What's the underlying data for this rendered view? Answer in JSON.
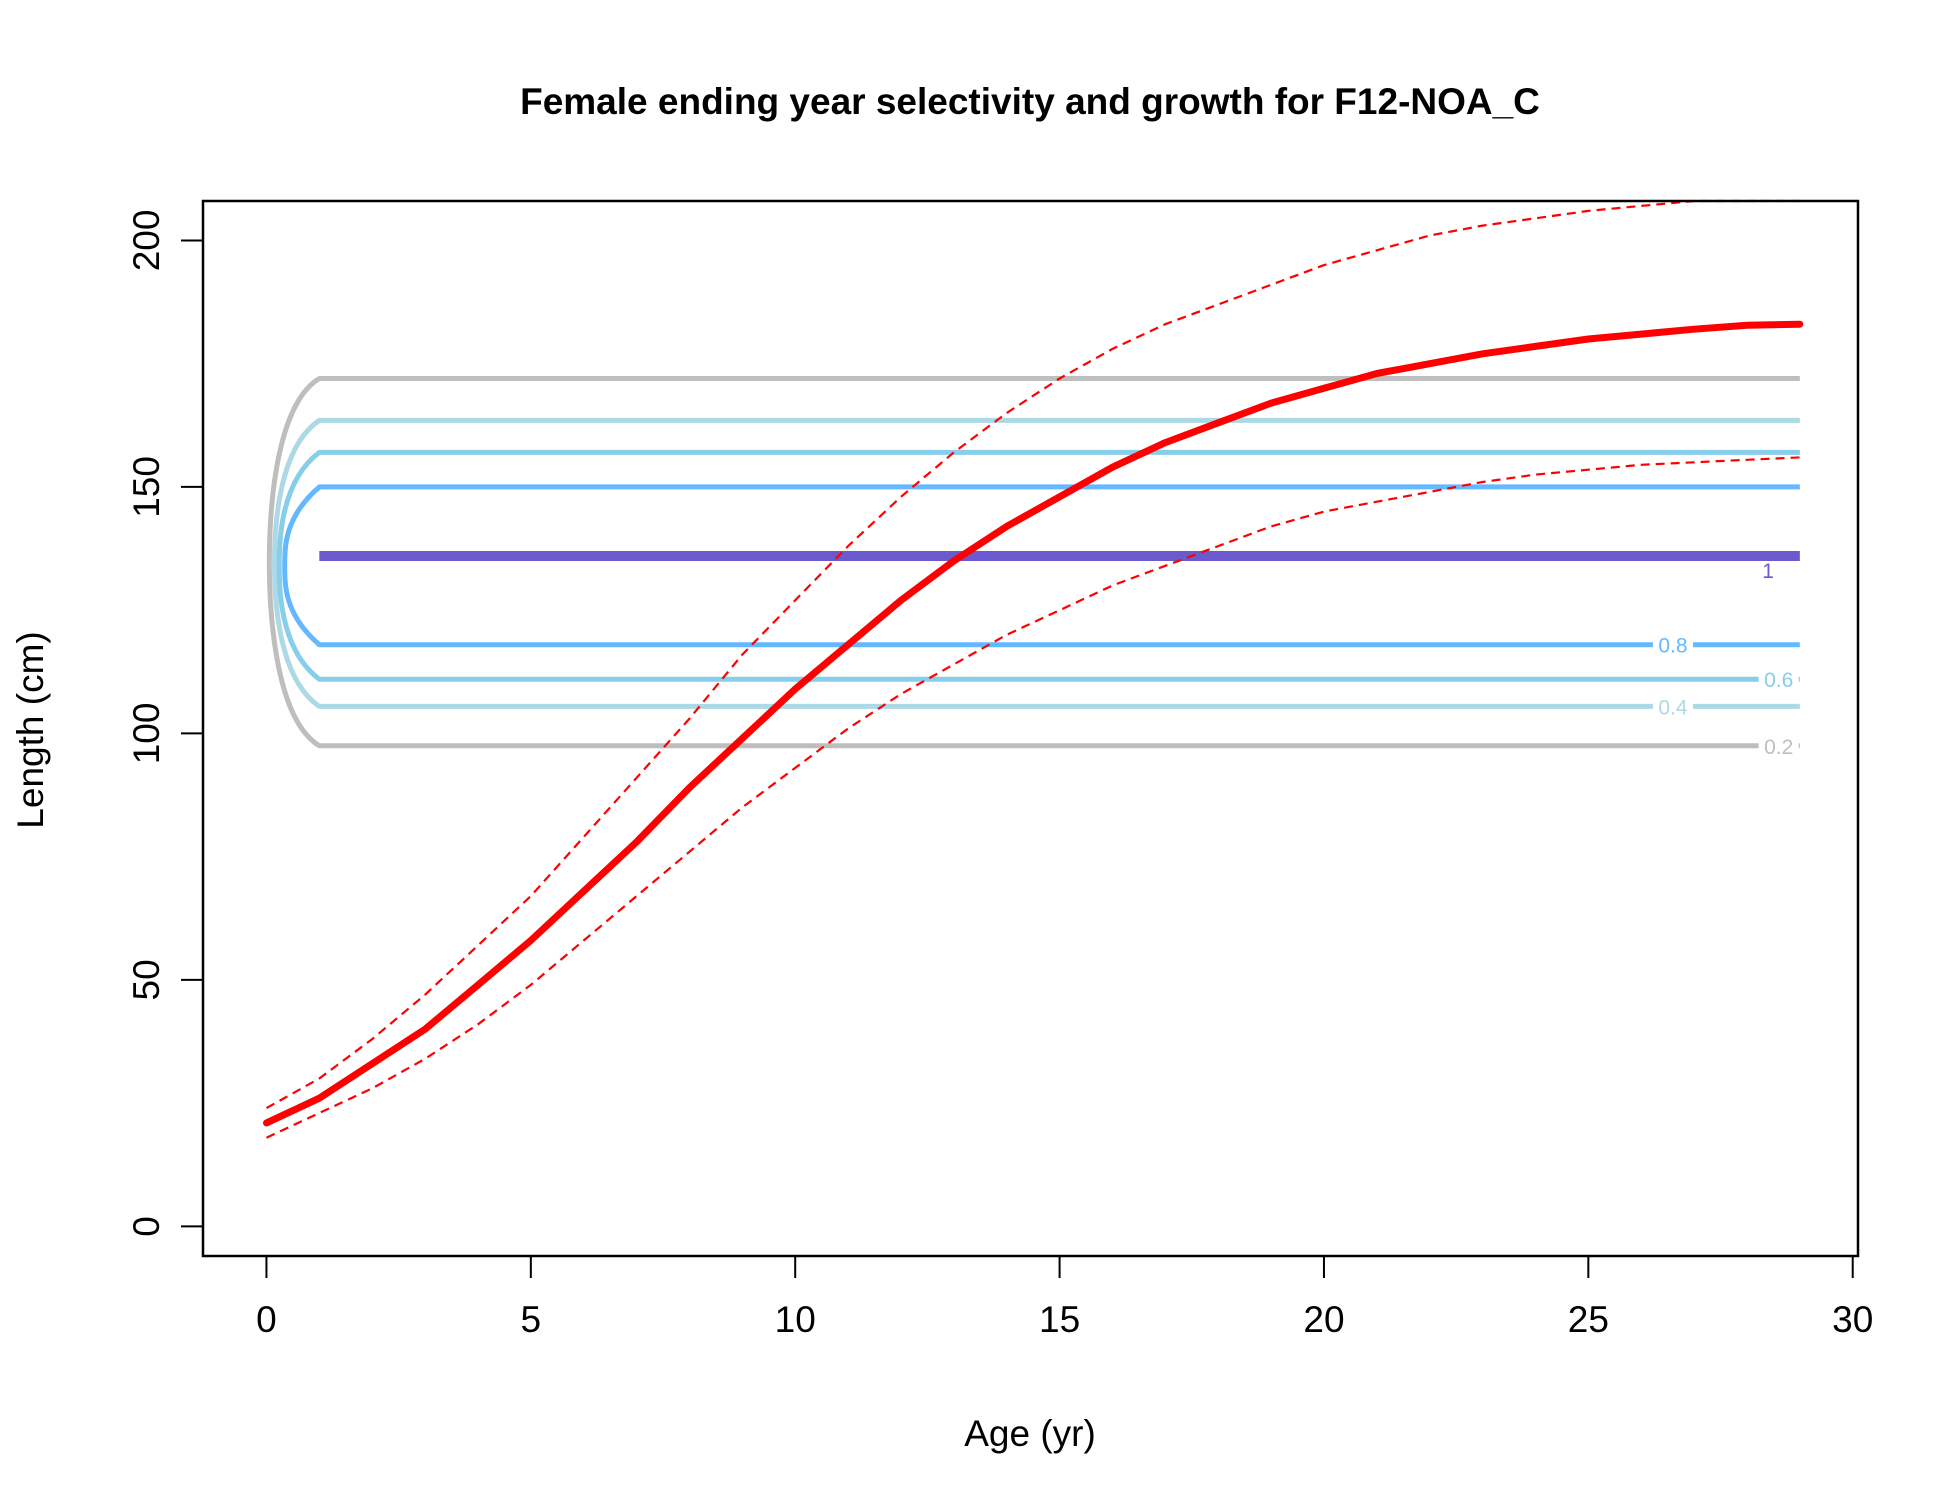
{
  "chart_data": {
    "type": "line",
    "title": "Female ending year selectivity and growth for F12-NOA_C",
    "xlabel": "Age (yr)",
    "ylabel": "Length (cm)",
    "xlim": [
      -1.2,
      30.1
    ],
    "ylim": [
      -6,
      208
    ],
    "x_ticks": [
      0,
      5,
      10,
      15,
      20,
      25,
      30
    ],
    "y_ticks": [
      0,
      50,
      100,
      150,
      200
    ],
    "x_tick_labels": [
      "0",
      "5",
      "10",
      "15",
      "20",
      "25",
      "30"
    ],
    "y_tick_labels": [
      "0",
      "50",
      "100",
      "150",
      "200"
    ],
    "grid": false,
    "legend": "none",
    "growth": {
      "ages": [
        0,
        1,
        2,
        3,
        4,
        5,
        6,
        7,
        8,
        9,
        10,
        11,
        12,
        13,
        14,
        15,
        16,
        17,
        18,
        19,
        20,
        21,
        22,
        23,
        24,
        25,
        26,
        27,
        28,
        29
      ],
      "mean": [
        21,
        26,
        33,
        40,
        49,
        58,
        68,
        78,
        89,
        99,
        109,
        118,
        127,
        135,
        142,
        148,
        154,
        159,
        163,
        167,
        170,
        173,
        175,
        177,
        178.5,
        180,
        181,
        182,
        182.8,
        183
      ],
      "upper": [
        24,
        30,
        38,
        47,
        57,
        67,
        79,
        91,
        103,
        116,
        127,
        138,
        148,
        157,
        165,
        172,
        178,
        183,
        187,
        191,
        195,
        198,
        201,
        203,
        204.5,
        206,
        207,
        208,
        208.5,
        209
      ],
      "lower": [
        18,
        23,
        28,
        34,
        41,
        49,
        58,
        67,
        76,
        85,
        93,
        101,
        108,
        114,
        120,
        125,
        130,
        134,
        138,
        142,
        145,
        147,
        149,
        151,
        152.5,
        153.5,
        154.5,
        155,
        155.5,
        156
      ],
      "color": "#ff0000"
    },
    "selectivity_contours": [
      {
        "level": "1",
        "color": "#6a5acd",
        "lower": 136,
        "upper": 136,
        "label_age": 28.4
      },
      {
        "level": "0.8",
        "color": "#63b8ff",
        "lower": 118,
        "upper": 150,
        "label_age": 26.6
      },
      {
        "level": "0.6",
        "color": "#87ceeb",
        "lower": 111,
        "upper": 157,
        "label_age": 28.6
      },
      {
        "level": "0.4",
        "color": "#add8e6",
        "lower": 105.5,
        "upper": 163.5,
        "label_age": 26.6
      },
      {
        "level": "0.2",
        "color": "#bebebe",
        "lower": 97.5,
        "upper": 172,
        "label_age": 28.6
      }
    ],
    "contour_age_range": [
      1,
      29
    ]
  }
}
